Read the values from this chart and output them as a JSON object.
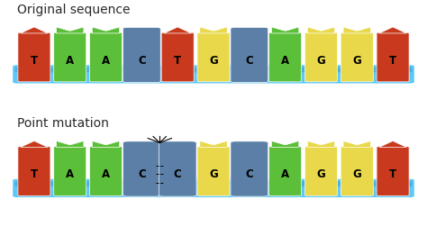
{
  "title1": "Original sequence",
  "title2": "Point mutation",
  "seq1": [
    "T",
    "A",
    "A",
    "C",
    "T",
    "G",
    "C",
    "A",
    "G",
    "G",
    "T"
  ],
  "seq2": [
    "T",
    "A",
    "A",
    "C",
    "C",
    "G",
    "C",
    "A",
    "G",
    "G",
    "T"
  ],
  "mutation_index": 4,
  "color_map": {
    "T": "#C8391D",
    "A": "#5BBF3A",
    "C": "#5B7FA6",
    "G": "#E8D84A"
  },
  "bar_color": "#5BC8F5",
  "bar_color2": "#4AAFE0",
  "bg_color": "#FFFFFF",
  "title_fontsize": 10,
  "label_fontsize": 8.5,
  "fig_width": 4.74,
  "fig_height": 2.53
}
